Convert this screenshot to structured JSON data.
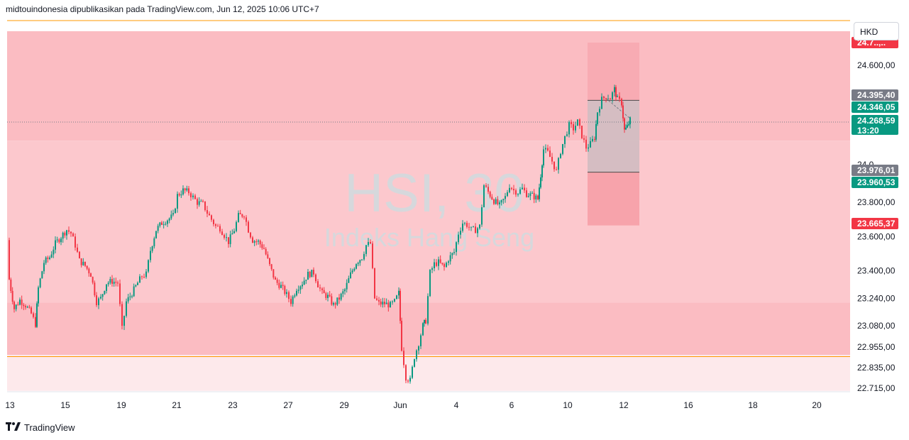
{
  "header": {
    "publisher_line": "midtouindonesia dipublikasikan pada TradingView.com, Jun 12, 2025 10:06 UTC+7"
  },
  "currency": "HKD",
  "watermark": {
    "symbol": "HSI, 30",
    "name": "Indeks Hang Seng"
  },
  "footer": {
    "brand": "TradingView",
    "logo_icon": "tradingview-logo-icon"
  },
  "colors": {
    "up": "#089981",
    "down": "#f23645",
    "zone_dark": "#fbbcc2",
    "zone_light": "#fcc8cd",
    "zone_faint": "#fde9eb",
    "resistance_line": "#ff9800",
    "tag_gray": "#787b86",
    "tag_green": "#089981",
    "tag_red": "#f23645"
  },
  "chart_data": {
    "type": "candlestick",
    "price_range": [
      22700,
      24960
    ],
    "y_ticks": [
      "24.600,00",
      "23.800,00",
      "23.600,00",
      "23.400,00",
      "23.240,00",
      "23.080,00",
      "22.955,00",
      "22.835,00",
      "22.715,00"
    ],
    "x_ticks": [
      "13",
      "15",
      "19",
      "21",
      "23",
      "27",
      "29",
      "Jun",
      "4",
      "6",
      "10",
      "12",
      "16",
      "18",
      "20"
    ],
    "price_labels": [
      {
        "text": "24.7..,..",
        "kind": "red",
        "partially_hidden": true
      },
      {
        "text": "24.395,40",
        "kind": "gray"
      },
      {
        "text": "24.346,05",
        "kind": "green"
      },
      {
        "text": "24.268,59",
        "sub": "13:20",
        "kind": "green"
      },
      {
        "text": "24.0..,..",
        "kind": "axis",
        "partially_hidden": true
      },
      {
        "text": "23.976,01",
        "kind": "gray"
      },
      {
        "text": "23.960,53",
        "kind": "green"
      },
      {
        "text": "23.665,37",
        "kind": "red"
      }
    ],
    "last_price": 24268.59,
    "zones": [
      {
        "name": "upper-supply-zone",
        "from": 24160,
        "to": 24895,
        "shade": "dark"
      },
      {
        "name": "middle-zone",
        "from": 23215,
        "to": 24160,
        "shade": "light"
      },
      {
        "name": "lower-demand-zone",
        "from": 22910,
        "to": 23215,
        "shade": "dark"
      },
      {
        "name": "below-zone",
        "from": 22700,
        "to": 22910,
        "shade": "faint"
      }
    ],
    "resistance_line": 24960,
    "support_line": 22900,
    "position_box": {
      "stop": 24820,
      "entry": 23976.01,
      "target": 23665.37,
      "upper_line": 24395.4
    },
    "path": [
      [
        10,
        23580
      ],
      [
        13,
        23350
      ],
      [
        20,
        23180
      ],
      [
        28,
        23230
      ],
      [
        36,
        23200
      ],
      [
        44,
        23150
      ],
      [
        50,
        23090
      ],
      [
        54,
        23300
      ],
      [
        62,
        23450
      ],
      [
        70,
        23480
      ],
      [
        78,
        23560
      ],
      [
        86,
        23600
      ],
      [
        94,
        23640
      ],
      [
        100,
        23620
      ],
      [
        106,
        23550
      ],
      [
        112,
        23460
      ],
      [
        120,
        23430
      ],
      [
        128,
        23380
      ],
      [
        136,
        23220
      ],
      [
        142,
        23240
      ],
      [
        150,
        23330
      ],
      [
        158,
        23340
      ],
      [
        166,
        23330
      ],
      [
        172,
        23060
      ],
      [
        178,
        23220
      ],
      [
        186,
        23270
      ],
      [
        194,
        23330
      ],
      [
        200,
        23370
      ],
      [
        206,
        23380
      ],
      [
        212,
        23520
      ],
      [
        220,
        23640
      ],
      [
        228,
        23680
      ],
      [
        236,
        23700
      ],
      [
        244,
        23720
      ],
      [
        250,
        23840
      ],
      [
        258,
        23870
      ],
      [
        266,
        23860
      ],
      [
        272,
        23830
      ],
      [
        278,
        23800
      ],
      [
        286,
        23790
      ],
      [
        292,
        23740
      ],
      [
        298,
        23700
      ],
      [
        304,
        23660
      ],
      [
        310,
        23650
      ],
      [
        316,
        23610
      ],
      [
        322,
        23570
      ],
      [
        330,
        23640
      ],
      [
        336,
        23720
      ],
      [
        344,
        23730
      ],
      [
        350,
        23640
      ],
      [
        356,
        23580
      ],
      [
        364,
        23570
      ],
      [
        372,
        23530
      ],
      [
        380,
        23430
      ],
      [
        388,
        23340
      ],
      [
        396,
        23310
      ],
      [
        404,
        23260
      ],
      [
        410,
        23220
      ],
      [
        418,
        23300
      ],
      [
        426,
        23330
      ],
      [
        434,
        23380
      ],
      [
        442,
        23390
      ],
      [
        448,
        23320
      ],
      [
        454,
        23270
      ],
      [
        462,
        23250
      ],
      [
        470,
        23200
      ],
      [
        478,
        23240
      ],
      [
        486,
        23290
      ],
      [
        494,
        23380
      ],
      [
        502,
        23450
      ],
      [
        510,
        23480
      ],
      [
        516,
        23550
      ],
      [
        522,
        23560
      ],
      [
        528,
        23240
      ],
      [
        534,
        23210
      ],
      [
        542,
        23210
      ],
      [
        550,
        23200
      ],
      [
        556,
        23220
      ],
      [
        562,
        23270
      ],
      [
        566,
        22950
      ],
      [
        572,
        22780
      ],
      [
        578,
        22760
      ],
      [
        584,
        22900
      ],
      [
        590,
        22980
      ],
      [
        596,
        23080
      ],
      [
        600,
        23110
      ],
      [
        606,
        23390
      ],
      [
        612,
        23440
      ],
      [
        618,
        23450
      ],
      [
        626,
        23420
      ],
      [
        632,
        23470
      ],
      [
        640,
        23510
      ],
      [
        646,
        23620
      ],
      [
        652,
        23680
      ],
      [
        658,
        23670
      ],
      [
        664,
        23640
      ],
      [
        670,
        23640
      ],
      [
        676,
        23660
      ],
      [
        682,
        23900
      ],
      [
        688,
        23860
      ],
      [
        696,
        23810
      ],
      [
        704,
        23780
      ],
      [
        712,
        23830
      ],
      [
        718,
        23900
      ],
      [
        724,
        23870
      ],
      [
        730,
        23860
      ],
      [
        736,
        23880
      ],
      [
        742,
        23850
      ],
      [
        750,
        23840
      ],
      [
        758,
        23820
      ],
      [
        762,
        23960
      ],
      [
        766,
        24110
      ],
      [
        772,
        24090
      ],
      [
        778,
        24040
      ],
      [
        784,
        23980
      ],
      [
        790,
        24100
      ],
      [
        796,
        24180
      ],
      [
        802,
        24250
      ],
      [
        808,
        24230
      ],
      [
        814,
        24270
      ],
      [
        820,
        24190
      ],
      [
        826,
        24120
      ],
      [
        832,
        24140
      ],
      [
        838,
        24180
      ],
      [
        842,
        24330
      ],
      [
        848,
        24400
      ],
      [
        854,
        24420
      ],
      [
        860,
        24410
      ],
      [
        866,
        24460
      ],
      [
        870,
        24400
      ],
      [
        876,
        24380
      ],
      [
        880,
        24220
      ],
      [
        884,
        24240
      ],
      [
        888,
        24280
      ]
    ]
  }
}
